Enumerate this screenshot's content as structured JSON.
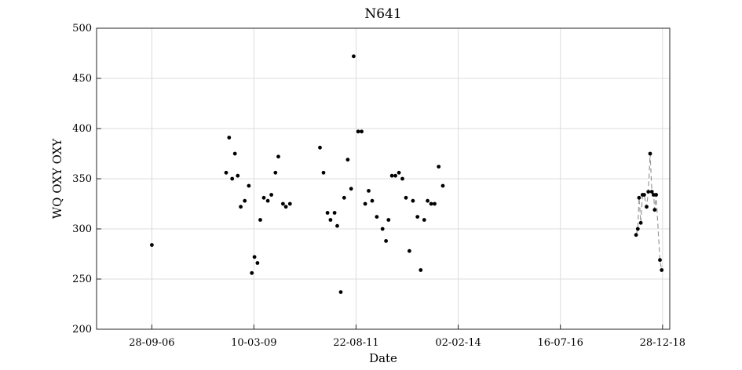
{
  "chart_data": {
    "type": "scatter",
    "title": "N641",
    "xlabel": "Date",
    "ylabel": "WQ OXY OXY",
    "ylim": [
      200,
      500
    ],
    "yticks": [
      200,
      250,
      300,
      350,
      400,
      450,
      500
    ],
    "xlim": [
      "2005-06-01",
      "2019-03-01"
    ],
    "xtick_labels": [
      "28-09-06",
      "10-03-09",
      "22-08-11",
      "02-02-14",
      "16-07-16",
      "28-12-18"
    ],
    "xtick_dates": [
      "2006-09-28",
      "2009-03-10",
      "2011-08-22",
      "2014-02-02",
      "2016-07-16",
      "2018-12-28"
    ],
    "grid": true,
    "series": [
      {
        "style": "markers",
        "color": "#000000",
        "points": [
          [
            "2006-09-28",
            284
          ],
          [
            "2008-07-10",
            356
          ],
          [
            "2008-08-05",
            391
          ],
          [
            "2008-09-01",
            350
          ],
          [
            "2008-09-25",
            375
          ],
          [
            "2008-10-20",
            353
          ],
          [
            "2008-11-15",
            322
          ],
          [
            "2008-12-20",
            328
          ],
          [
            "2009-01-25",
            343
          ],
          [
            "2009-02-20",
            256
          ],
          [
            "2009-03-15",
            272
          ],
          [
            "2009-04-10",
            266
          ],
          [
            "2009-05-05",
            309
          ],
          [
            "2009-06-05",
            331
          ],
          [
            "2009-07-10",
            328
          ],
          [
            "2009-08-10",
            334
          ],
          [
            "2009-09-15",
            356
          ],
          [
            "2009-10-10",
            372
          ],
          [
            "2009-11-20",
            325
          ],
          [
            "2009-12-15",
            322
          ],
          [
            "2010-01-20",
            325
          ],
          [
            "2010-10-10",
            381
          ],
          [
            "2010-11-10",
            356
          ],
          [
            "2010-12-15",
            316
          ],
          [
            "2011-01-10",
            309
          ],
          [
            "2011-02-15",
            316
          ],
          [
            "2011-03-10",
            303
          ],
          [
            "2011-04-10",
            237
          ],
          [
            "2011-05-10",
            331
          ],
          [
            "2011-06-10",
            369
          ],
          [
            "2011-07-10",
            340
          ],
          [
            "2011-08-01",
            472
          ],
          [
            "2011-09-10",
            397
          ],
          [
            "2011-10-10",
            397
          ],
          [
            "2011-11-10",
            325
          ],
          [
            "2011-12-10",
            338
          ],
          [
            "2012-01-10",
            328
          ],
          [
            "2012-02-20",
            312
          ],
          [
            "2012-04-10",
            300
          ],
          [
            "2012-05-10",
            288
          ],
          [
            "2012-06-01",
            309
          ],
          [
            "2012-07-01",
            353
          ],
          [
            "2012-08-01",
            353
          ],
          [
            "2012-09-01",
            356
          ],
          [
            "2012-10-01",
            350
          ],
          [
            "2012-11-01",
            331
          ],
          [
            "2012-12-01",
            278
          ],
          [
            "2013-01-01",
            328
          ],
          [
            "2013-02-10",
            312
          ],
          [
            "2013-03-10",
            259
          ],
          [
            "2013-04-10",
            309
          ],
          [
            "2013-05-10",
            328
          ],
          [
            "2013-06-10",
            325
          ],
          [
            "2013-07-10",
            325
          ],
          [
            "2013-08-15",
            362
          ],
          [
            "2013-09-20",
            343
          ]
        ]
      },
      {
        "style": "dashed-line-markers",
        "color": "#000000",
        "line_color": "#999999",
        "points": [
          [
            "2018-05-10",
            294
          ],
          [
            "2018-05-25",
            300
          ],
          [
            "2018-06-05",
            331
          ],
          [
            "2018-06-20",
            306
          ],
          [
            "2018-07-05",
            334
          ],
          [
            "2018-07-20",
            334
          ],
          [
            "2018-08-10",
            322
          ],
          [
            "2018-08-25",
            337
          ],
          [
            "2018-09-10",
            375
          ],
          [
            "2018-09-25",
            337
          ],
          [
            "2018-10-10",
            334
          ],
          [
            "2018-10-20",
            319
          ],
          [
            "2018-11-01",
            334
          ],
          [
            "2018-12-05",
            269
          ],
          [
            "2018-12-20",
            259
          ]
        ]
      }
    ]
  }
}
